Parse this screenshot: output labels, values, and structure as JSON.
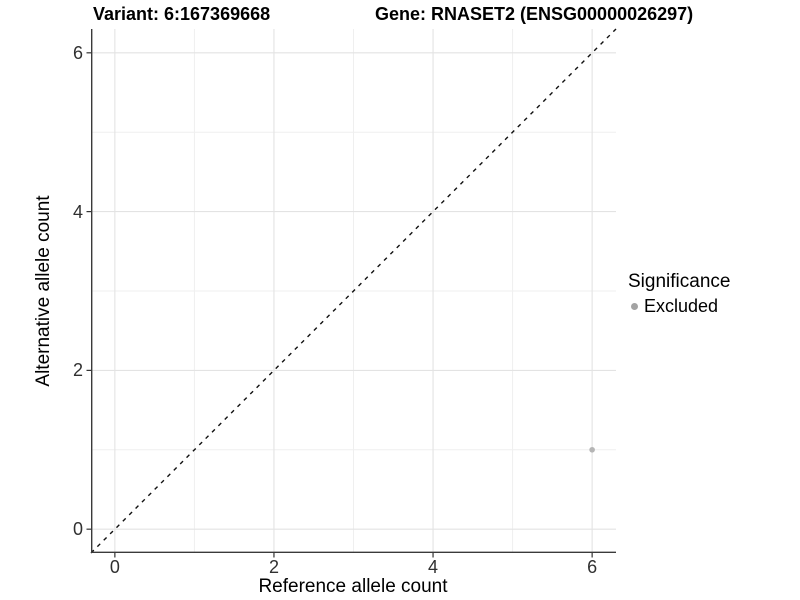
{
  "title": {
    "variant": "Variant: 6:167369668",
    "gene": "Gene: RNASET2 (ENSG00000026297)"
  },
  "legend": {
    "title": "Significance",
    "items": [
      {
        "label": "Excluded",
        "color": "#a3a3a3"
      }
    ]
  },
  "chart_data": {
    "type": "scatter",
    "title": "Variant: 6:167369668    Gene: RNASET2 (ENSG00000026297)",
    "xlabel": "Reference allele count",
    "ylabel": "Alternative allele count",
    "xlim": [
      -0.3,
      6.3
    ],
    "ylim": [
      -0.3,
      6.3
    ],
    "x_ticks": [
      0,
      2,
      4,
      6
    ],
    "y_ticks": [
      0,
      2,
      4,
      6
    ],
    "x_minor_ticks": [
      1,
      3,
      5
    ],
    "y_minor_ticks": [
      1,
      3,
      5
    ],
    "grid": true,
    "legend_position": "right",
    "series": [
      {
        "name": "Excluded",
        "color": "#b5b5b5",
        "points": [
          {
            "x": 6,
            "y": 1
          }
        ]
      }
    ],
    "reference_line": {
      "style": "dashed",
      "color": "#111111",
      "equation": "y = x"
    }
  },
  "colors": {
    "background": "#ffffff",
    "grid_major": "#e3e3e3",
    "grid_minor": "#efefef",
    "axis_line": "#3a3a3a",
    "tick_mark": "#333333",
    "tick_text": "#303030",
    "point": "#b5b5b5",
    "legend_dot": "#a3a3a3"
  }
}
